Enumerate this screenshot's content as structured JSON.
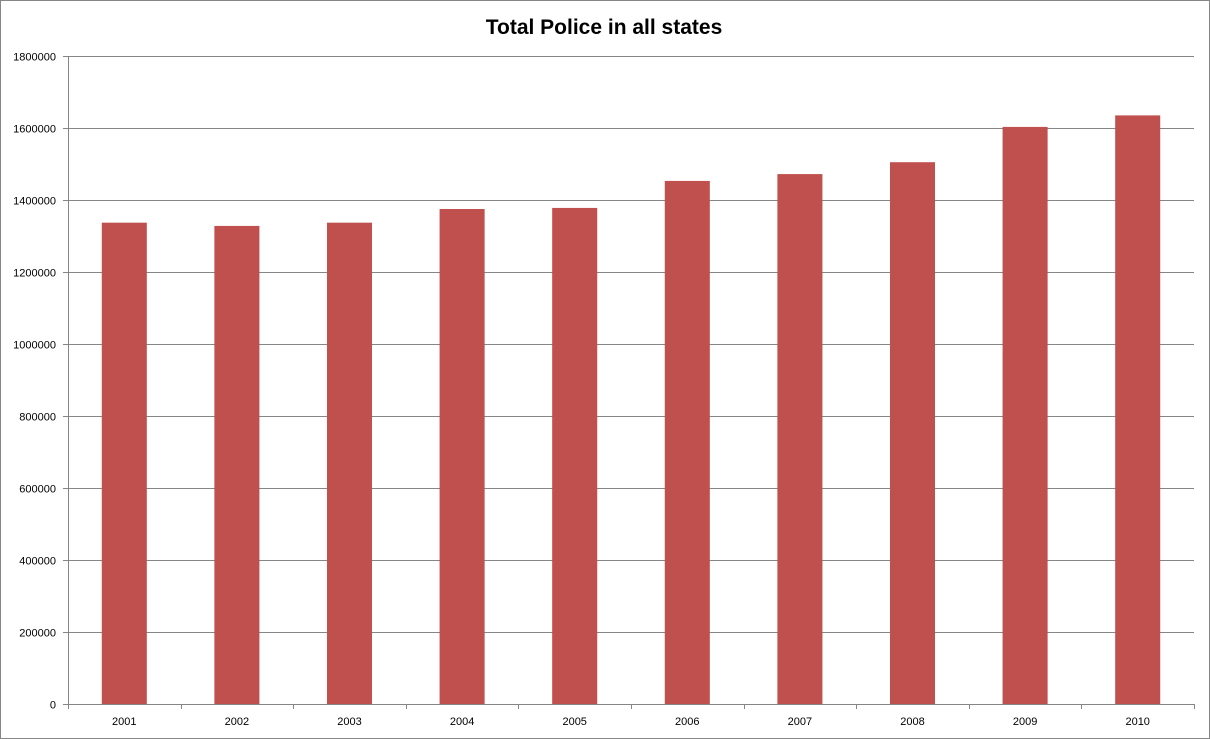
{
  "chart_data": {
    "type": "bar",
    "title": "Total Police in all states",
    "xlabel": "",
    "ylabel": "",
    "categories": [
      "2001",
      "2002",
      "2003",
      "2004",
      "2005",
      "2006",
      "2007",
      "2008",
      "2009",
      "2010"
    ],
    "values": [
      1337000,
      1328000,
      1337000,
      1375000,
      1378000,
      1453000,
      1472000,
      1505000,
      1603000,
      1635000
    ],
    "ylim": [
      0,
      1800000
    ],
    "yticks": [
      0,
      200000,
      400000,
      600000,
      800000,
      1000000,
      1200000,
      1400000,
      1600000,
      1800000
    ],
    "ytick_labels": [
      "0",
      "200000",
      "400000",
      "600000",
      "800000",
      "1000000",
      "1200000",
      "1400000",
      "1600000",
      "1800000"
    ],
    "grid": true,
    "legend": "none",
    "colors": {
      "bar": "#c0504d",
      "grid": "#868686",
      "axis": "#868686",
      "text": "#000000"
    }
  }
}
